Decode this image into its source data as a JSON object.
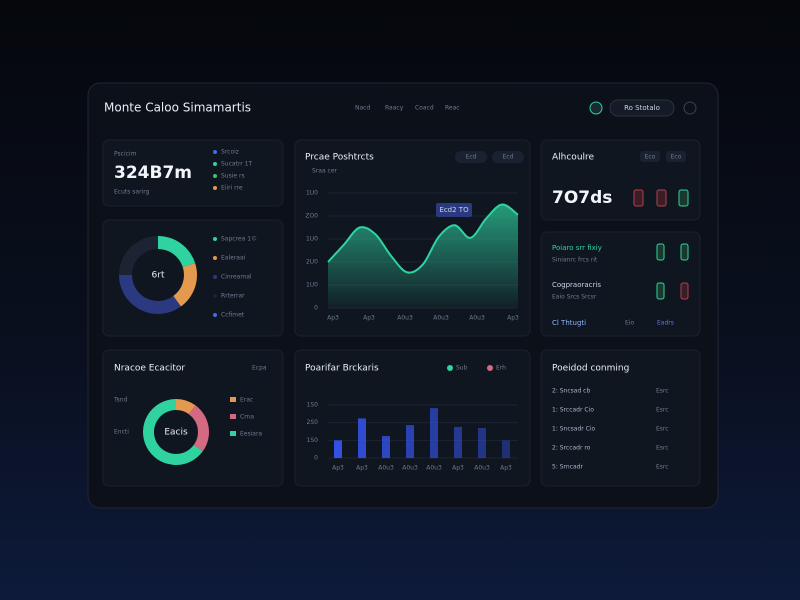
{
  "header": {
    "title": "Monte Caloo Simamartis",
    "nav": [
      "Nacd",
      "Raacy",
      "Coacd",
      "Reac"
    ],
    "button": "Ro Stotalo"
  },
  "kpi": {
    "label": "Pscicim",
    "value": "324B7m",
    "note": "Ecuts sarirg",
    "legend": [
      {
        "name": "Srcoiz",
        "color": "#3f6ee8"
      },
      {
        "name": "Sucatrr 1T",
        "color": "#2fd3a0"
      },
      {
        "name": "Susie rs",
        "color": "#36c46a"
      },
      {
        "name": "Eiiri rre",
        "color": "#e39a4f"
      }
    ]
  },
  "allocation": {
    "center": "6rt",
    "values": [
      20,
      20,
      35,
      25
    ],
    "legend": [
      {
        "name": "Sapcrea 1©",
        "color": "#2fd3a0"
      },
      {
        "name": "Ealeraai",
        "color": "#e39a4f"
      },
      {
        "name": "Cinreamal",
        "color": "#2b3a80"
      },
      {
        "name": "Rrterrar",
        "color": "#1c2433"
      }
    ],
    "extra_legend": "Ccfimet"
  },
  "price": {
    "title": "Prcae Poshtrcts",
    "subtitle": "Sraa cer",
    "tabs": [
      "Ecd",
      "Ecd"
    ],
    "tooltip": "Ecd2 TO",
    "color": "#2fd3a0",
    "values": [
      40,
      55,
      70,
      64,
      45,
      31,
      38,
      62,
      72,
      61,
      78,
      90,
      81
    ],
    "ylim": [
      0,
      100
    ],
    "yticks": [
      0,
      {
        "value": 20,
        "label": "1U0"
      },
      {
        "value": 40,
        "label": "2U0"
      },
      {
        "value": 60,
        "label": "1U0"
      },
      {
        "value": 80,
        "label": "ZO0"
      },
      {
        "value": 100,
        "label": "1U0"
      }
    ],
    "x_labels": [
      "Ap3",
      "Ap3",
      "A0u3",
      "A0u3",
      "A0u3",
      "Ap3"
    ]
  },
  "risk": {
    "title": "Nracoe Ecacitor",
    "tag": "Ecpa",
    "center": "Eacis",
    "side_labels": [
      "Tsnd",
      "Encti"
    ],
    "values": [
      10,
      25,
      65
    ],
    "legend": [
      {
        "name": "Erac",
        "color": "#e39a4f"
      },
      {
        "name": "Crna",
        "color": "#d46a82"
      },
      {
        "name": "Eesiara",
        "color": "#2fd3a0"
      }
    ]
  },
  "returns": {
    "title": "Poarifar Brckaris",
    "color": "#3350e0",
    "legend": [
      {
        "name": "Sub",
        "color": "#2fd3a0"
      },
      {
        "name": "Erh",
        "color": "#d46a82"
      }
    ],
    "values": [
      50,
      112,
      62,
      93,
      141,
      88,
      85,
      50
    ],
    "ylim": [
      0,
      150
    ],
    "yticks": [
      0,
      {
        "value": 50,
        "label": "1S0"
      },
      {
        "value": 100,
        "label": "2S0"
      },
      {
        "value": 150,
        "label": "1S0"
      }
    ],
    "x_labels": [
      "Ap3",
      "Ap3",
      "A0u3",
      "A0u3",
      "A0u3",
      "Ap3",
      "A0u3",
      "Ap3"
    ]
  },
  "alerts": {
    "title": "Alhcoulre",
    "tabs": [
      "Eco",
      "Eco"
    ],
    "value": "7O7ds"
  },
  "signals": {
    "rows": [
      {
        "title": "Poiaro srr fixiy",
        "sub": "Sinianrc frcs rit"
      },
      {
        "title": "Cogpraoracris",
        "sub": "Eaio Srcs Srcsr"
      }
    ],
    "footer": [
      "Cl Thtugti",
      "Eio",
      "Eadrs"
    ]
  },
  "schedule": {
    "title": "Poeidod conming",
    "rows": [
      [
        "2: Sncsad cb",
        "Esrc"
      ],
      [
        "1: Srccadr Cio",
        "Esrc"
      ],
      [
        "1: Sncsadr Cio",
        "Esrc"
      ],
      [
        "2: Srccadr ro",
        "Esrc"
      ],
      [
        "5: Srncadr",
        "Esrc"
      ]
    ]
  }
}
